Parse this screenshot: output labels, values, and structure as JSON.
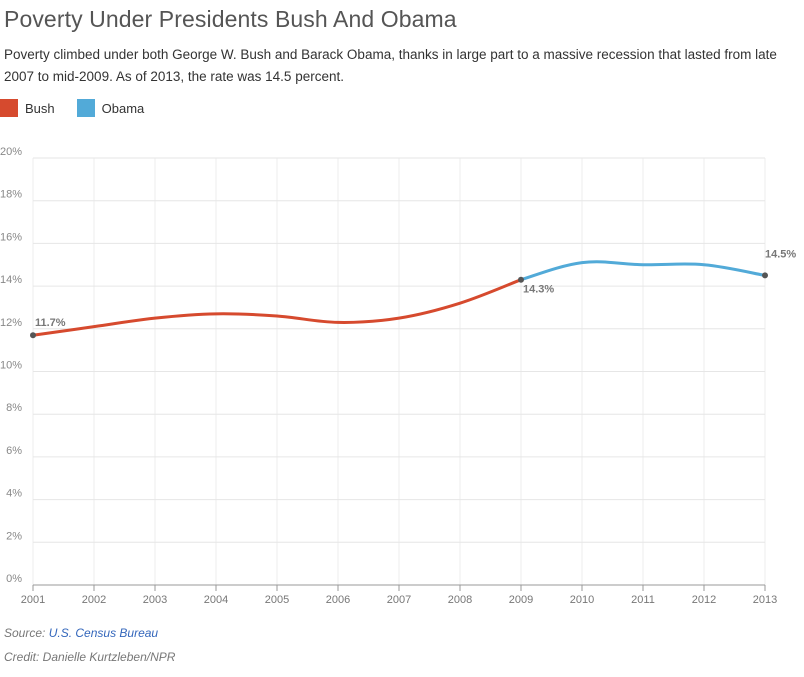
{
  "title": "Poverty Under Presidents Bush And Obama",
  "subtitle": "Poverty climbed under both George W. Bush and Barack Obama, thanks in large part to a massive recession that lasted from late 2007 to mid-2009. As of 2013, the rate was 14.5 percent.",
  "legend": [
    {
      "label": "Bush",
      "color": "#d64a2e"
    },
    {
      "label": "Obama",
      "color": "#52aad8"
    }
  ],
  "footer": {
    "source_prefix": "Source: ",
    "source_link": "U.S. Census Bureau",
    "credit": "Credit: Danielle Kurtzleben/NPR"
  },
  "chart_data": {
    "type": "line",
    "x": [
      2001,
      2002,
      2003,
      2004,
      2005,
      2006,
      2007,
      2008,
      2009,
      2010,
      2011,
      2012,
      2013
    ],
    "ylim": [
      0,
      20
    ],
    "y_ticks": [
      "0%",
      "2%",
      "4%",
      "6%",
      "8%",
      "10%",
      "12%",
      "14%",
      "16%",
      "18%",
      "20%"
    ],
    "x_ticks": [
      "2001",
      "2002",
      "2003",
      "2004",
      "2005",
      "2006",
      "2007",
      "2008",
      "2009",
      "2010",
      "2011",
      "2012",
      "2013"
    ],
    "grid": true,
    "series": [
      {
        "name": "Bush",
        "color": "#d64a2e",
        "x": [
          2001,
          2002,
          2003,
          2004,
          2005,
          2006,
          2007,
          2008,
          2009
        ],
        "values": [
          11.7,
          12.1,
          12.5,
          12.7,
          12.6,
          12.3,
          12.5,
          13.2,
          14.3
        ]
      },
      {
        "name": "Obama",
        "color": "#52aad8",
        "x": [
          2009,
          2010,
          2011,
          2012,
          2013
        ],
        "values": [
          14.3,
          15.1,
          15.0,
          15.0,
          14.5
        ]
      }
    ],
    "annotations": [
      {
        "x": 2001,
        "y": 11.7,
        "label": "11.7%"
      },
      {
        "x": 2009,
        "y": 14.3,
        "label": "14.3%"
      },
      {
        "x": 2013,
        "y": 14.5,
        "label": "14.5%"
      }
    ]
  }
}
